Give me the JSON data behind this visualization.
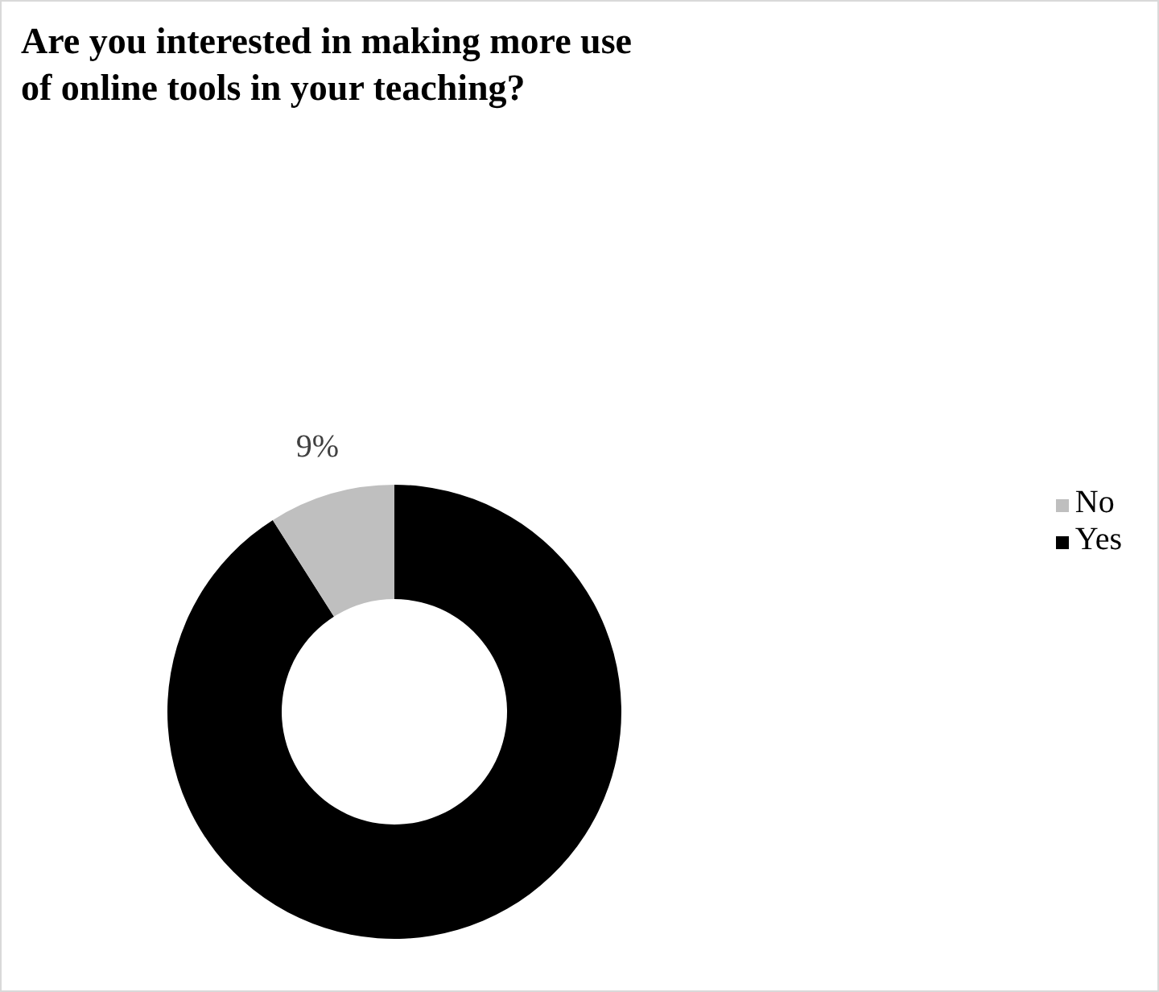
{
  "chart_data": {
    "type": "donut",
    "title": "Are you interested in making more use of online tools in your teaching?",
    "categories": [
      "Yes",
      "No"
    ],
    "values": [
      91,
      9
    ],
    "colors": [
      "#000000",
      "#bfbfbf"
    ],
    "value_labels": [
      null,
      "9%"
    ],
    "legend": "right"
  }
}
